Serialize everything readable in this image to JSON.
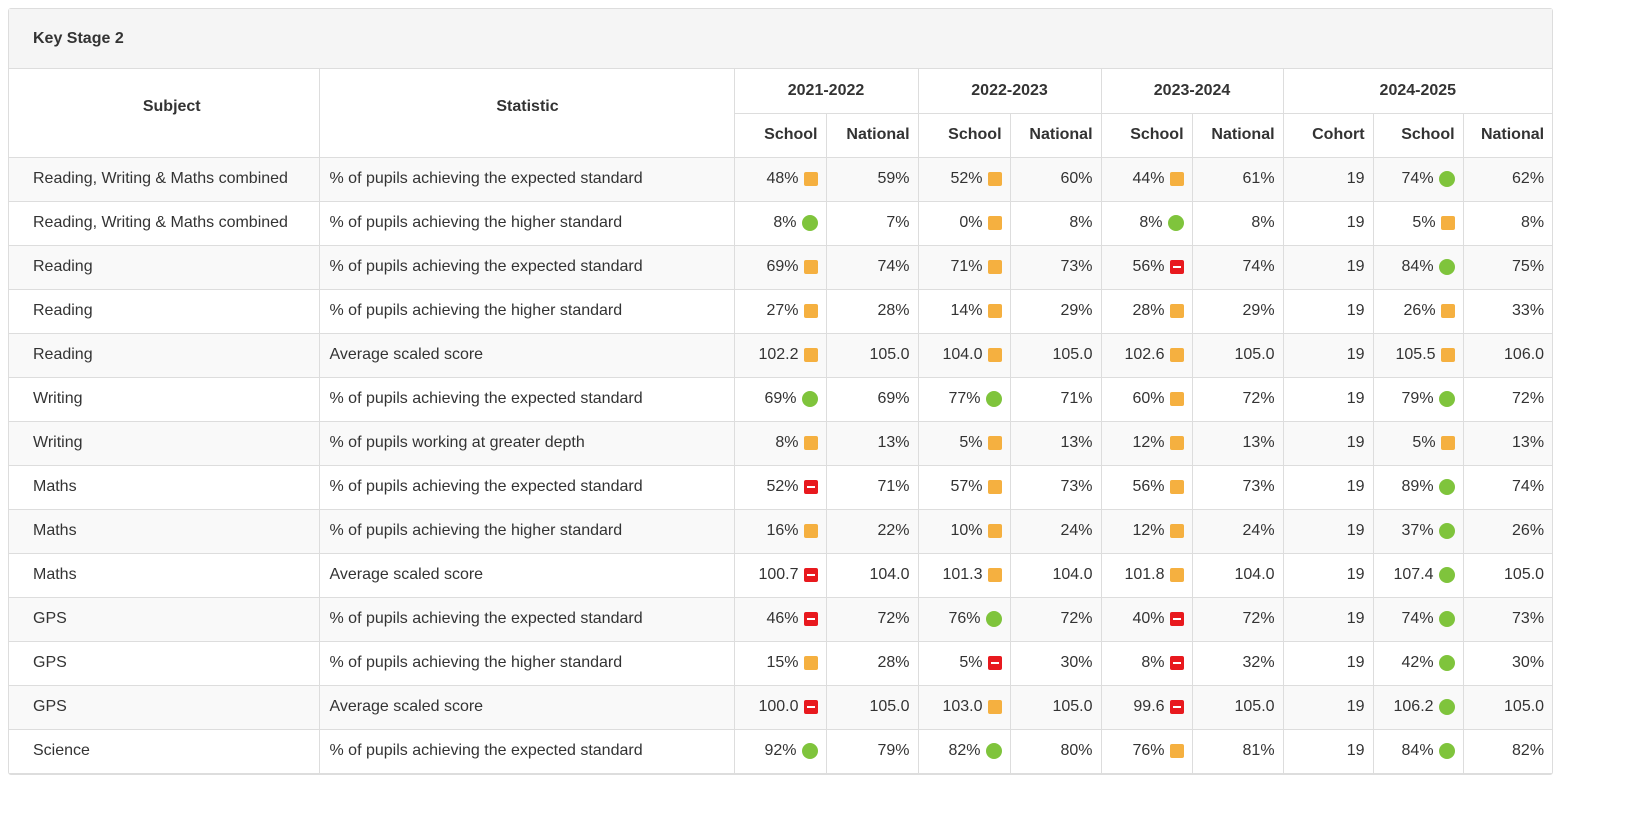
{
  "panel": {
    "title": "Key Stage 2"
  },
  "colors": {
    "amber": "#f5b040",
    "green": "#7fc43c",
    "red": "#e8191e"
  },
  "header": {
    "subject": "Subject",
    "statistic": "Statistic",
    "years": [
      "2021-2022",
      "2022-2023",
      "2023-2024",
      "2024-2025"
    ],
    "school": "School",
    "national": "National",
    "cohort": "Cohort"
  },
  "rows": [
    {
      "subject": "Reading, Writing & Maths combined",
      "statistic": "% of pupils achieving the expected standard",
      "y1": {
        "school": "48%",
        "ind": "amber",
        "national": "59%"
      },
      "y2": {
        "school": "52%",
        "ind": "amber",
        "national": "60%"
      },
      "y3": {
        "school": "44%",
        "ind": "amber",
        "national": "61%"
      },
      "y4": {
        "cohort": "19",
        "school": "74%",
        "ind": "green",
        "national": "62%"
      }
    },
    {
      "subject": "Reading, Writing & Maths combined",
      "statistic": "% of pupils achieving the higher standard",
      "y1": {
        "school": "8%",
        "ind": "green",
        "national": "7%"
      },
      "y2": {
        "school": "0%",
        "ind": "amber",
        "national": "8%"
      },
      "y3": {
        "school": "8%",
        "ind": "green",
        "national": "8%"
      },
      "y4": {
        "cohort": "19",
        "school": "5%",
        "ind": "amber",
        "national": "8%"
      }
    },
    {
      "subject": "Reading",
      "statistic": "% of pupils achieving the expected standard",
      "y1": {
        "school": "69%",
        "ind": "amber",
        "national": "74%"
      },
      "y2": {
        "school": "71%",
        "ind": "amber",
        "national": "73%"
      },
      "y3": {
        "school": "56%",
        "ind": "red",
        "national": "74%"
      },
      "y4": {
        "cohort": "19",
        "school": "84%",
        "ind": "green",
        "national": "75%"
      }
    },
    {
      "subject": "Reading",
      "statistic": "% of pupils achieving the higher standard",
      "y1": {
        "school": "27%",
        "ind": "amber",
        "national": "28%"
      },
      "y2": {
        "school": "14%",
        "ind": "amber",
        "national": "29%"
      },
      "y3": {
        "school": "28%",
        "ind": "amber",
        "national": "29%"
      },
      "y4": {
        "cohort": "19",
        "school": "26%",
        "ind": "amber",
        "national": "33%"
      }
    },
    {
      "subject": "Reading",
      "statistic": "Average scaled score",
      "y1": {
        "school": "102.2",
        "ind": "amber",
        "national": "105.0"
      },
      "y2": {
        "school": "104.0",
        "ind": "amber",
        "national": "105.0"
      },
      "y3": {
        "school": "102.6",
        "ind": "amber",
        "national": "105.0"
      },
      "y4": {
        "cohort": "19",
        "school": "105.5",
        "ind": "amber",
        "national": "106.0"
      }
    },
    {
      "subject": "Writing",
      "statistic": "% of pupils achieving the expected standard",
      "y1": {
        "school": "69%",
        "ind": "green",
        "national": "69%"
      },
      "y2": {
        "school": "77%",
        "ind": "green",
        "national": "71%"
      },
      "y3": {
        "school": "60%",
        "ind": "amber",
        "national": "72%"
      },
      "y4": {
        "cohort": "19",
        "school": "79%",
        "ind": "green",
        "national": "72%"
      }
    },
    {
      "subject": "Writing",
      "statistic": "% of pupils working at greater depth",
      "y1": {
        "school": "8%",
        "ind": "amber",
        "national": "13%"
      },
      "y2": {
        "school": "5%",
        "ind": "amber",
        "national": "13%"
      },
      "y3": {
        "school": "12%",
        "ind": "amber",
        "national": "13%"
      },
      "y4": {
        "cohort": "19",
        "school": "5%",
        "ind": "amber",
        "national": "13%"
      }
    },
    {
      "subject": "Maths",
      "statistic": "% of pupils achieving the expected standard",
      "y1": {
        "school": "52%",
        "ind": "red",
        "national": "71%"
      },
      "y2": {
        "school": "57%",
        "ind": "amber",
        "national": "73%"
      },
      "y3": {
        "school": "56%",
        "ind": "amber",
        "national": "73%"
      },
      "y4": {
        "cohort": "19",
        "school": "89%",
        "ind": "green",
        "national": "74%"
      }
    },
    {
      "subject": "Maths",
      "statistic": "% of pupils achieving the higher standard",
      "y1": {
        "school": "16%",
        "ind": "amber",
        "national": "22%"
      },
      "y2": {
        "school": "10%",
        "ind": "amber",
        "national": "24%"
      },
      "y3": {
        "school": "12%",
        "ind": "amber",
        "national": "24%"
      },
      "y4": {
        "cohort": "19",
        "school": "37%",
        "ind": "green",
        "national": "26%"
      }
    },
    {
      "subject": "Maths",
      "statistic": "Average scaled score",
      "y1": {
        "school": "100.7",
        "ind": "red",
        "national": "104.0"
      },
      "y2": {
        "school": "101.3",
        "ind": "amber",
        "national": "104.0"
      },
      "y3": {
        "school": "101.8",
        "ind": "amber",
        "national": "104.0"
      },
      "y4": {
        "cohort": "19",
        "school": "107.4",
        "ind": "green",
        "national": "105.0"
      }
    },
    {
      "subject": "GPS",
      "statistic": "% of pupils achieving the expected standard",
      "y1": {
        "school": "46%",
        "ind": "red",
        "national": "72%"
      },
      "y2": {
        "school": "76%",
        "ind": "green",
        "national": "72%"
      },
      "y3": {
        "school": "40%",
        "ind": "red",
        "national": "72%"
      },
      "y4": {
        "cohort": "19",
        "school": "74%",
        "ind": "green",
        "national": "73%"
      }
    },
    {
      "subject": "GPS",
      "statistic": "% of pupils achieving the higher standard",
      "y1": {
        "school": "15%",
        "ind": "amber",
        "national": "28%"
      },
      "y2": {
        "school": "5%",
        "ind": "red",
        "national": "30%"
      },
      "y3": {
        "school": "8%",
        "ind": "red",
        "national": "32%"
      },
      "y4": {
        "cohort": "19",
        "school": "42%",
        "ind": "green",
        "national": "30%"
      }
    },
    {
      "subject": "GPS",
      "statistic": "Average scaled score",
      "y1": {
        "school": "100.0",
        "ind": "red",
        "national": "105.0"
      },
      "y2": {
        "school": "103.0",
        "ind": "amber",
        "national": "105.0"
      },
      "y3": {
        "school": "99.6",
        "ind": "red",
        "national": "105.0"
      },
      "y4": {
        "cohort": "19",
        "school": "106.2",
        "ind": "green",
        "national": "105.0"
      }
    },
    {
      "subject": "Science",
      "statistic": "% of pupils achieving the expected standard",
      "y1": {
        "school": "92%",
        "ind": "green",
        "national": "79%"
      },
      "y2": {
        "school": "82%",
        "ind": "green",
        "national": "80%"
      },
      "y3": {
        "school": "76%",
        "ind": "amber",
        "national": "81%"
      },
      "y4": {
        "cohort": "19",
        "school": "84%",
        "ind": "green",
        "national": "82%"
      }
    }
  ]
}
